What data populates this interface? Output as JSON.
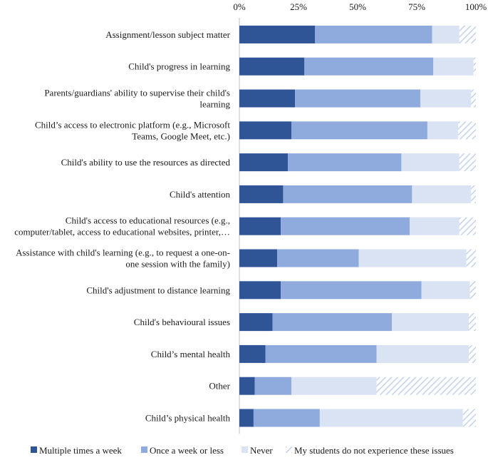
{
  "chart_data": {
    "type": "bar",
    "orientation": "horizontal",
    "stacked": "percent",
    "title": "",
    "xlabel": "",
    "ylabel": "",
    "xlim": [
      0,
      100
    ],
    "x_ticks": [
      "0%",
      "25%",
      "50%",
      "75%",
      "100%"
    ],
    "x_tick_values": [
      0,
      25,
      50,
      75,
      100
    ],
    "grid": false,
    "legend_position": "bottom",
    "categories": [
      [
        "Assignment/lesson subject matter"
      ],
      [
        "Child's progress in learning"
      ],
      [
        "Parents/guardians' ability to supervise their child's",
        "learning"
      ],
      [
        "Child’s access to electronic platform (e.g., Microsoft",
        "Teams, Google Meet, etc.)"
      ],
      [
        "Child's ability to use the resources as directed"
      ],
      [
        "Child's attention"
      ],
      [
        "Child's access to educational resources (e.g.,",
        "computer/tablet, access to educational websites, printer,…"
      ],
      [
        "Assistance with child's learning (e.g., to request a one-on-",
        "one session with the family)"
      ],
      [
        "Child's adjustment to distance learning"
      ],
      [
        "Child's behavioural issues"
      ],
      [
        "Child’s mental health"
      ],
      [
        "Other"
      ],
      [
        "Child’s physical health"
      ]
    ],
    "series": [
      {
        "name": "Multiple times a week",
        "color": "#2f5597",
        "pattern": "solid",
        "values": [
          32,
          27.5,
          23.5,
          22,
          20.5,
          18.5,
          17.5,
          16,
          17.5,
          14,
          11,
          6.5,
          6
        ]
      },
      {
        "name": "Once a week or less",
        "color": "#8faadc",
        "pattern": "solid",
        "values": [
          49.5,
          54.5,
          53,
          57.5,
          48,
          54.5,
          54.5,
          34.5,
          59.5,
          50.5,
          47,
          15.5,
          28
        ]
      },
      {
        "name": "Never",
        "color": "#dae3f3",
        "pattern": "solid",
        "values": [
          11.5,
          17,
          21.5,
          13,
          24.5,
          25,
          21,
          45.5,
          20.5,
          32.5,
          39,
          36,
          60.5
        ]
      },
      {
        "name": "My students do not experience these issues",
        "color": "#dae3f3",
        "pattern": "hatched",
        "values": [
          7,
          1,
          2,
          7.5,
          7,
          2,
          7,
          4,
          2.5,
          3,
          3,
          42,
          5.5
        ]
      }
    ]
  }
}
